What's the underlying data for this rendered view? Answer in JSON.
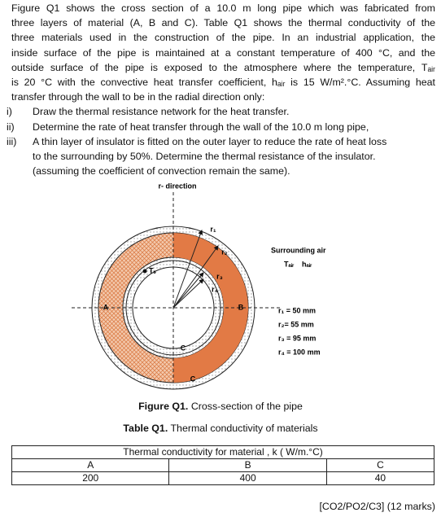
{
  "intro": [
    "Figure Q1 shows the cross section of a 10.0 m long pipe which was fabricated from",
    "three layers of material (A, B and C). Table Q1 shows the thermal conductivity of the",
    "three materials used in the construction of the pipe. In an industrial application, the",
    "inside surface of the pipe is maintained at a constant temperature of 400 °C, and the",
    "outside surface of the pipe is exposed to the atmosphere where the temperature, Tₐᵢᵣ",
    "is 20 °C with the convective heat transfer coefficient, hₐᵢᵣ is 15 W/m².°C. Assuming heat",
    "transfer through the wall to be in the radial direction only:"
  ],
  "questions": [
    {
      "label": "i)",
      "lines": [
        "Draw the thermal resistance network for the heat transfer."
      ]
    },
    {
      "label": "ii)",
      "lines": [
        "Determine the rate of heat transfer through the wall of the 10.0 m long pipe,"
      ]
    },
    {
      "label": "iii)",
      "lines": [
        "A thin layer of insulator is fitted on the outer layer to reduce the rate of heat loss",
        "to the surrounding by 50%. Determine the thermal resistance of the insulator.",
        "(assuming the coefficient of convection remain the same)."
      ]
    }
  ],
  "diagram": {
    "axis_label": "r- direction",
    "region_a": "A",
    "region_b": "B",
    "region_c_inner": "C",
    "region_c_outer": "C",
    "surface_temp": "Tₛ",
    "radii_labels": [
      "r₁",
      "r₂",
      "r₃",
      "r₄"
    ],
    "surrounding": "Surrounding air",
    "t_air": "Tₐᵢᵣ",
    "h_air": "hₐᵢᵣ",
    "dimensions": [
      "r₁ = 50 mm",
      "r₂= 55 mm",
      "r₃ = 95 mm",
      "r₄ = 100 mm"
    ]
  },
  "figure_caption": {
    "label": "Figure Q1.",
    "text": "Cross-section of the pipe"
  },
  "table_caption": {
    "label": "Table Q1.",
    "text": "Thermal conductivity of materials"
  },
  "table": {
    "header": "Thermal conductivity for material , k ( W/m.°C)",
    "columns": [
      "A",
      "B",
      "C"
    ],
    "rows": [
      [
        "200",
        "400",
        "40"
      ]
    ]
  },
  "footer": "[CO2/PO2/C3] (12 marks)"
}
